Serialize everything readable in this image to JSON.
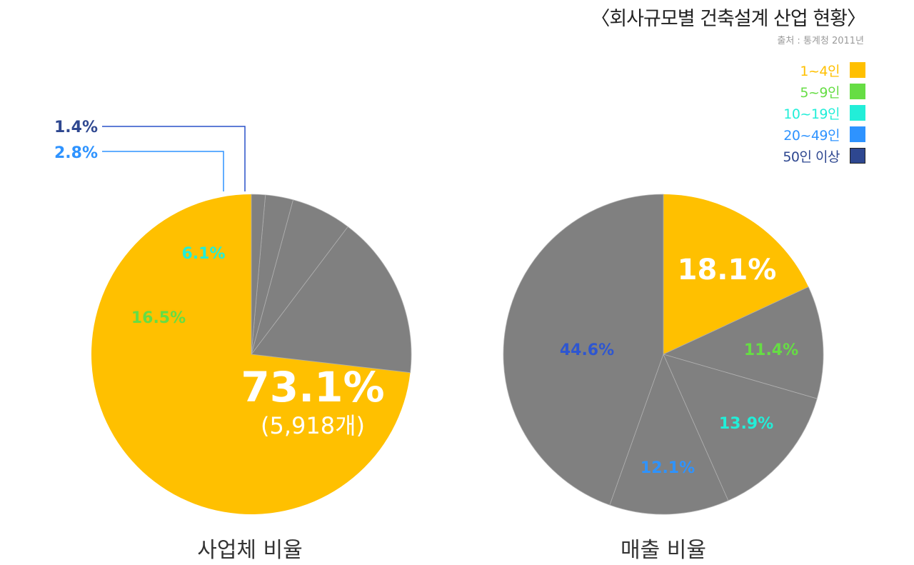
{
  "header": {
    "title": "〈회사규모별 건축설계 산업 현황〉",
    "source": "출처 : 통계청 2011년"
  },
  "legend": [
    {
      "label": "1~4인",
      "color": "#FFC000"
    },
    {
      "label": "5~9인",
      "color": "#66DD44"
    },
    {
      "label": "10~19인",
      "color": "#22EED8"
    },
    {
      "label": "20~49인",
      "color": "#2E93FF"
    },
    {
      "label": "50인 이상",
      "color": "#2E4790"
    }
  ],
  "chart_data": [
    {
      "type": "pie",
      "title": "사업체 비율",
      "categories": [
        "1~4인",
        "5~9인",
        "10~19인",
        "20~49인",
        "50인 이상"
      ],
      "values": [
        73.1,
        16.5,
        6.1,
        2.8,
        1.4
      ],
      "labels": [
        "73.1%",
        "16.5%",
        "6.1%",
        "2.8%",
        "1.4%"
      ],
      "highlight": {
        "category": "1~4인",
        "count_label": "(5,918개)"
      },
      "highlight_color": "#FFC000",
      "other_color": "#808080"
    },
    {
      "type": "pie",
      "title": "매출 비율",
      "categories": [
        "1~4인",
        "5~9인",
        "10~19인",
        "20~49인",
        "50인 이상"
      ],
      "values": [
        18.1,
        11.4,
        13.9,
        12.1,
        44.6
      ],
      "labels": [
        "18.1%",
        "11.4%",
        "13.9%",
        "12.1%",
        "44.6%"
      ],
      "highlight": {
        "category": "1~4인"
      },
      "highlight_color": "#FFC000",
      "other_color": "#808080"
    }
  ]
}
